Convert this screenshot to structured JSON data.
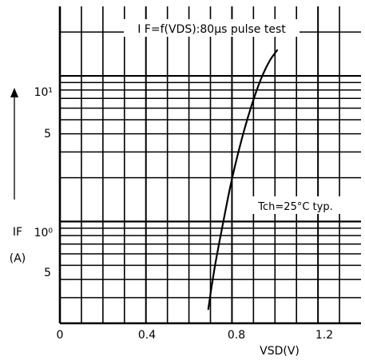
{
  "chart_data": {
    "type": "line",
    "title": "I F=f(VDS):80µs pulse test",
    "annotation": "Tch=25°C typ.",
    "xlabel": "VSD(V)",
    "ylabel_symbol": "IF",
    "ylabel_unit": "(A)",
    "x_ticks": [
      "0",
      "0.4",
      "0.8",
      "1.2"
    ],
    "y_ticks": [
      "10¹",
      "5",
      "10⁰",
      "5"
    ],
    "x_scale": "linear",
    "y_scale": "log",
    "xlim": [
      0,
      1.4
    ],
    "ylim": [
      0.2,
      30
    ],
    "grid": true,
    "series": [
      {
        "x": [
          0.69,
          0.72,
          0.76,
          0.8,
          0.86,
          0.92,
          0.97,
          1.01
        ],
        "y": [
          0.25,
          0.5,
          1.0,
          2.0,
          4.5,
          8.5,
          12.5,
          15.0
        ]
      }
    ]
  }
}
